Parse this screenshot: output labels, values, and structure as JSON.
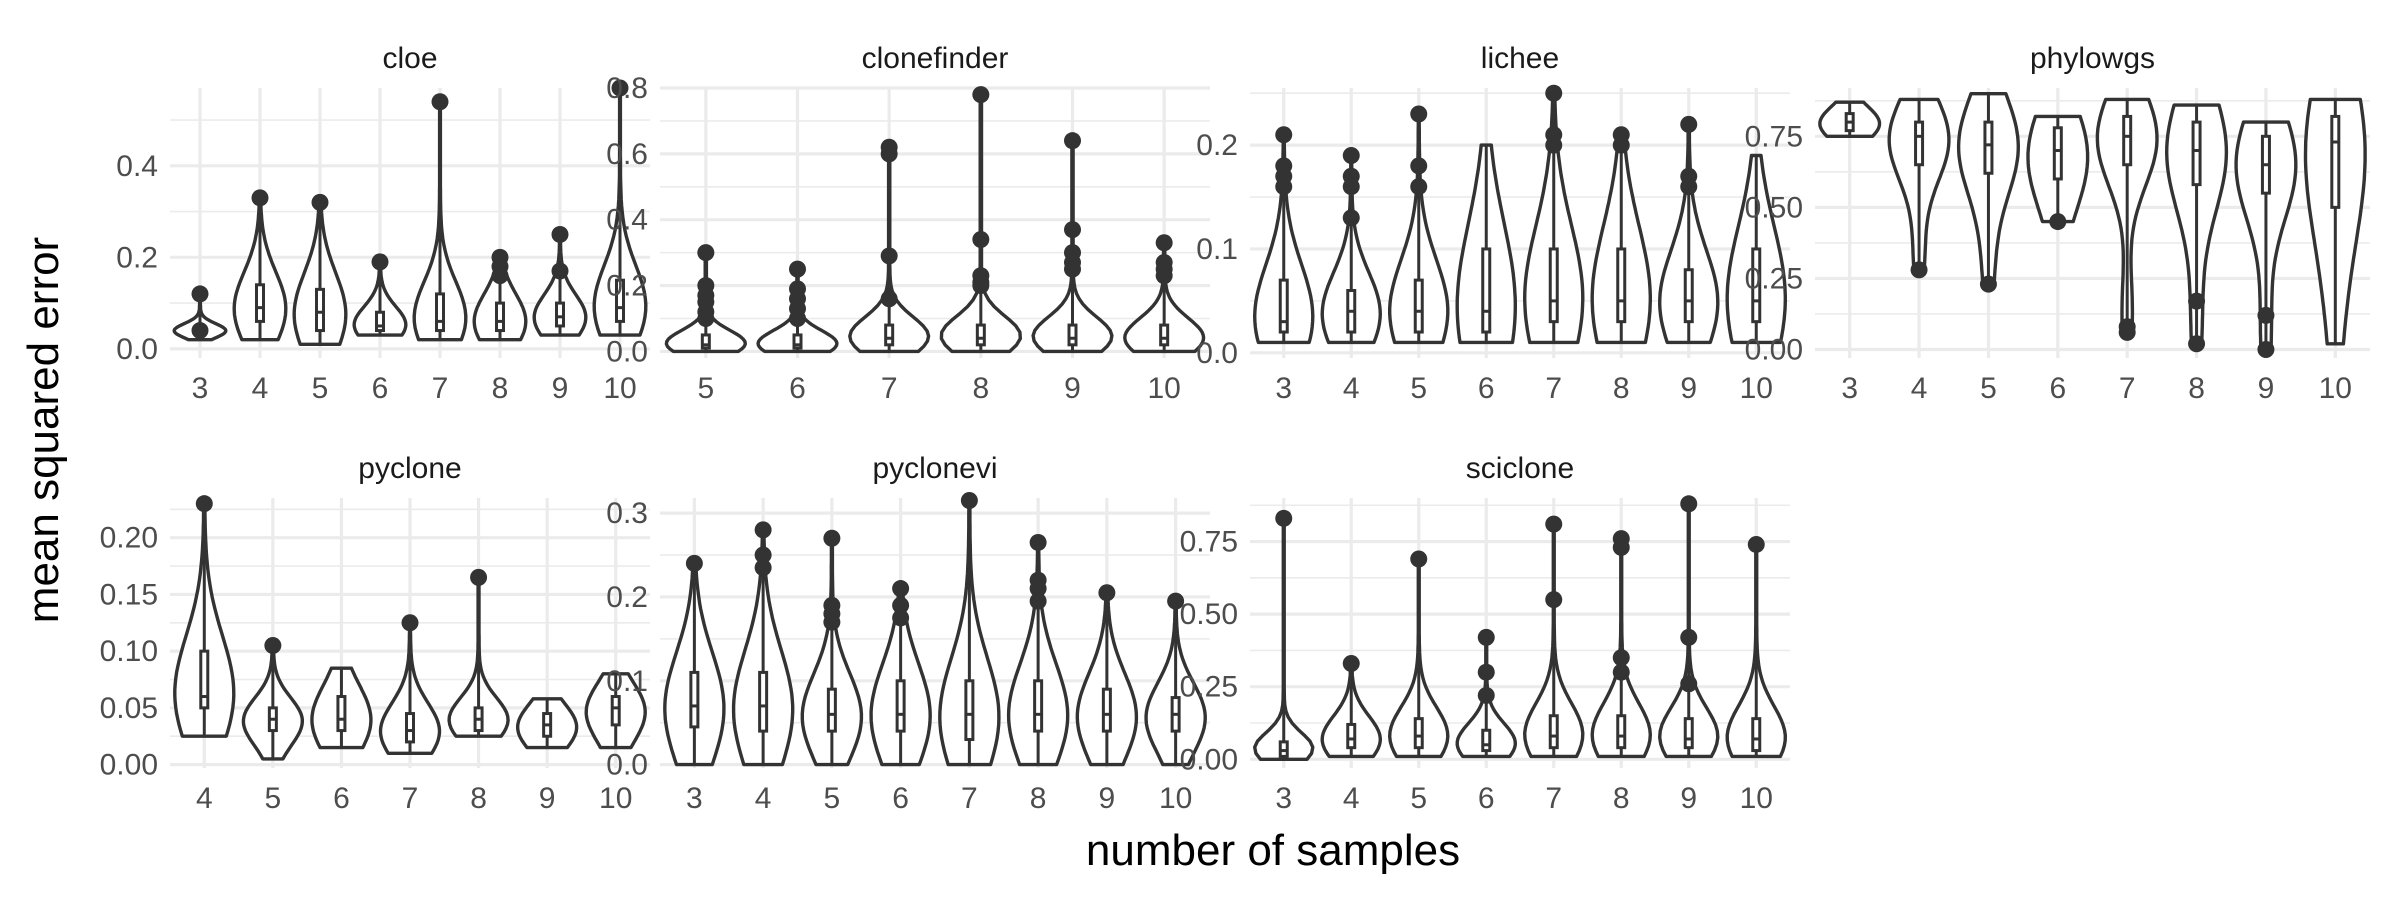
{
  "xlabel": "number of samples",
  "ylabel": "mean squared error",
  "colors": {
    "ink": "#333333",
    "grid": "#ebebeb",
    "background": "#ffffff"
  },
  "chart_data": [
    {
      "type": "violin",
      "title": "cloe",
      "categories": [
        "3",
        "4",
        "5",
        "6",
        "7",
        "8",
        "9",
        "10"
      ],
      "ylim": [
        -0.02,
        0.57
      ],
      "yticks": [
        0.0,
        0.2,
        0.4
      ],
      "ytick_labels": [
        "0.0",
        "0.2",
        "0.4"
      ],
      "groups": [
        {
          "x": "3",
          "min": 0.02,
          "q1": 0.035,
          "median": 0.04,
          "q3": 0.05,
          "max": 0.12,
          "outliers": [
            0.12,
            0.04
          ]
        },
        {
          "x": "4",
          "min": 0.02,
          "q1": 0.06,
          "median": 0.09,
          "q3": 0.14,
          "max": 0.33,
          "outliers": [
            0.33
          ]
        },
        {
          "x": "5",
          "min": 0.01,
          "q1": 0.04,
          "median": 0.08,
          "q3": 0.13,
          "max": 0.32,
          "outliers": [
            0.32
          ]
        },
        {
          "x": "6",
          "min": 0.03,
          "q1": 0.04,
          "median": 0.05,
          "q3": 0.08,
          "max": 0.19,
          "outliers": [
            0.19
          ]
        },
        {
          "x": "7",
          "min": 0.02,
          "q1": 0.04,
          "median": 0.06,
          "q3": 0.12,
          "max": 0.54,
          "outliers": [
            0.54
          ]
        },
        {
          "x": "8",
          "min": 0.02,
          "q1": 0.04,
          "median": 0.06,
          "q3": 0.1,
          "max": 0.2,
          "outliers": [
            0.2,
            0.18,
            0.16
          ]
        },
        {
          "x": "9",
          "min": 0.03,
          "q1": 0.05,
          "median": 0.07,
          "q3": 0.1,
          "max": 0.25,
          "outliers": [
            0.25,
            0.17
          ]
        },
        {
          "x": "10",
          "min": 0.03,
          "q1": 0.06,
          "median": 0.09,
          "q3": 0.15,
          "max": 0.57,
          "outliers": [
            0.57
          ]
        }
      ]
    },
    {
      "type": "violin",
      "title": "clonefinder",
      "categories": [
        "5",
        "6",
        "7",
        "8",
        "9",
        "10"
      ],
      "ylim": [
        -0.02,
        0.8
      ],
      "yticks": [
        0.0,
        0.2,
        0.4,
        0.6,
        0.8
      ],
      "ytick_labels": [
        "0.0",
        "0.2",
        "0.4",
        "0.6",
        "0.8"
      ],
      "groups": [
        {
          "x": "5",
          "min": 0.0,
          "q1": 0.01,
          "median": 0.02,
          "q3": 0.05,
          "max": 0.3,
          "outliers": [
            0.3,
            0.2,
            0.17,
            0.15,
            0.12,
            0.1
          ]
        },
        {
          "x": "6",
          "min": 0.0,
          "q1": 0.01,
          "median": 0.02,
          "q3": 0.05,
          "max": 0.25,
          "outliers": [
            0.25,
            0.19,
            0.16,
            0.13,
            0.1
          ]
        },
        {
          "x": "7",
          "min": 0.0,
          "q1": 0.02,
          "median": 0.04,
          "q3": 0.08,
          "max": 0.62,
          "outliers": [
            0.62,
            0.6,
            0.29,
            0.16
          ]
        },
        {
          "x": "8",
          "min": 0.0,
          "q1": 0.02,
          "median": 0.04,
          "q3": 0.08,
          "max": 0.78,
          "outliers": [
            0.78,
            0.34,
            0.23,
            0.21,
            0.2
          ]
        },
        {
          "x": "9",
          "min": 0.0,
          "q1": 0.02,
          "median": 0.04,
          "q3": 0.08,
          "max": 0.64,
          "outliers": [
            0.64,
            0.37,
            0.3,
            0.27,
            0.25
          ]
        },
        {
          "x": "10",
          "min": 0.0,
          "q1": 0.02,
          "median": 0.04,
          "q3": 0.08,
          "max": 0.33,
          "outliers": [
            0.33,
            0.27,
            0.25,
            0.23
          ]
        }
      ]
    },
    {
      "type": "violin",
      "title": "lichee",
      "categories": [
        "3",
        "4",
        "5",
        "6",
        "7",
        "8",
        "9",
        "10"
      ],
      "ylim": [
        -0.005,
        0.255
      ],
      "yticks": [
        0.0,
        0.1,
        0.2
      ],
      "ytick_labels": [
        "0.0",
        "0.1",
        "0.2"
      ],
      "groups": [
        {
          "x": "3",
          "min": 0.01,
          "q1": 0.02,
          "median": 0.03,
          "q3": 0.07,
          "max": 0.21,
          "outliers": [
            0.21,
            0.18,
            0.17,
            0.16
          ]
        },
        {
          "x": "4",
          "min": 0.01,
          "q1": 0.02,
          "median": 0.04,
          "q3": 0.06,
          "max": 0.19,
          "outliers": [
            0.19,
            0.17,
            0.16,
            0.13
          ]
        },
        {
          "x": "5",
          "min": 0.01,
          "q1": 0.02,
          "median": 0.04,
          "q3": 0.07,
          "max": 0.23,
          "outliers": [
            0.23,
            0.18,
            0.16
          ]
        },
        {
          "x": "6",
          "min": 0.01,
          "q1": 0.02,
          "median": 0.04,
          "q3": 0.1,
          "max": 0.2,
          "outliers": []
        },
        {
          "x": "7",
          "min": 0.01,
          "q1": 0.03,
          "median": 0.05,
          "q3": 0.1,
          "max": 0.25,
          "outliers": [
            0.25,
            0.21,
            0.2
          ]
        },
        {
          "x": "8",
          "min": 0.01,
          "q1": 0.03,
          "median": 0.05,
          "q3": 0.1,
          "max": 0.21,
          "outliers": [
            0.21,
            0.2
          ]
        },
        {
          "x": "9",
          "min": 0.01,
          "q1": 0.03,
          "median": 0.05,
          "q3": 0.08,
          "max": 0.22,
          "outliers": [
            0.22,
            0.17,
            0.16
          ]
        },
        {
          "x": "10",
          "min": 0.01,
          "q1": 0.03,
          "median": 0.05,
          "q3": 0.1,
          "max": 0.19,
          "outliers": []
        }
      ]
    },
    {
      "type": "violin",
      "title": "phylowgs",
      "categories": [
        "3",
        "4",
        "5",
        "6",
        "7",
        "8",
        "9",
        "10"
      ],
      "ylim": [
        -0.03,
        0.92
      ],
      "yticks": [
        0.0,
        0.25,
        0.5,
        0.75
      ],
      "ytick_labels": [
        "0.00",
        "0.25",
        "0.50",
        "0.75"
      ],
      "groups": [
        {
          "x": "3",
          "min": 0.75,
          "q1": 0.77,
          "median": 0.8,
          "q3": 0.83,
          "max": 0.87,
          "outliers": []
        },
        {
          "x": "4",
          "min": 0.28,
          "q1": 0.65,
          "median": 0.75,
          "q3": 0.8,
          "max": 0.88,
          "outliers": [
            0.28
          ]
        },
        {
          "x": "5",
          "min": 0.23,
          "q1": 0.62,
          "median": 0.72,
          "q3": 0.8,
          "max": 0.9,
          "outliers": [
            0.23
          ]
        },
        {
          "x": "6",
          "min": 0.45,
          "q1": 0.6,
          "median": 0.7,
          "q3": 0.78,
          "max": 0.82,
          "outliers": [
            0.45
          ]
        },
        {
          "x": "7",
          "min": 0.06,
          "q1": 0.65,
          "median": 0.75,
          "q3": 0.82,
          "max": 0.88,
          "outliers": [
            0.08,
            0.06
          ]
        },
        {
          "x": "8",
          "min": 0.02,
          "q1": 0.58,
          "median": 0.7,
          "q3": 0.8,
          "max": 0.86,
          "outliers": [
            0.17,
            0.02
          ]
        },
        {
          "x": "9",
          "min": 0.0,
          "q1": 0.55,
          "median": 0.65,
          "q3": 0.75,
          "max": 0.8,
          "outliers": [
            0.12,
            0.0
          ]
        },
        {
          "x": "10",
          "min": 0.02,
          "q1": 0.5,
          "median": 0.73,
          "q3": 0.82,
          "max": 0.88,
          "outliers": []
        }
      ]
    },
    {
      "type": "violin",
      "title": "pyclone",
      "categories": [
        "4",
        "5",
        "6",
        "7",
        "8",
        "9",
        "10"
      ],
      "ylim": [
        -0.003,
        0.235
      ],
      "yticks": [
        0.0,
        0.05,
        0.1,
        0.15,
        0.2
      ],
      "ytick_labels": [
        "0.00",
        "0.05",
        "0.10",
        "0.15",
        "0.20"
      ],
      "groups": [
        {
          "x": "4",
          "min": 0.025,
          "q1": 0.05,
          "median": 0.06,
          "q3": 0.1,
          "max": 0.23,
          "outliers": [
            0.23
          ]
        },
        {
          "x": "5",
          "min": 0.005,
          "q1": 0.03,
          "median": 0.04,
          "q3": 0.05,
          "max": 0.105,
          "outliers": [
            0.105
          ]
        },
        {
          "x": "6",
          "min": 0.015,
          "q1": 0.03,
          "median": 0.04,
          "q3": 0.06,
          "max": 0.085,
          "outliers": []
        },
        {
          "x": "7",
          "min": 0.01,
          "q1": 0.02,
          "median": 0.03,
          "q3": 0.045,
          "max": 0.125,
          "outliers": [
            0.125
          ]
        },
        {
          "x": "8",
          "min": 0.025,
          "q1": 0.03,
          "median": 0.04,
          "q3": 0.05,
          "max": 0.165,
          "outliers": [
            0.165
          ]
        },
        {
          "x": "9",
          "min": 0.015,
          "q1": 0.025,
          "median": 0.035,
          "q3": 0.045,
          "max": 0.058,
          "outliers": []
        },
        {
          "x": "10",
          "min": 0.015,
          "q1": 0.035,
          "median": 0.05,
          "q3": 0.06,
          "max": 0.08,
          "outliers": []
        }
      ]
    },
    {
      "type": "violin",
      "title": "pyclonevi",
      "categories": [
        "3",
        "4",
        "5",
        "6",
        "7",
        "8",
        "9",
        "10"
      ],
      "ylim": [
        -0.004,
        0.318
      ],
      "yticks": [
        0.0,
        0.1,
        0.2,
        0.3
      ],
      "ytick_labels": [
        "0.0",
        "0.1",
        "0.2",
        "0.3"
      ],
      "groups": [
        {
          "x": "3",
          "min": 0.0,
          "q1": 0.045,
          "median": 0.07,
          "q3": 0.11,
          "max": 0.24,
          "outliers": [
            0.24
          ]
        },
        {
          "x": "4",
          "min": 0.0,
          "q1": 0.04,
          "median": 0.07,
          "q3": 0.11,
          "max": 0.28,
          "outliers": [
            0.28,
            0.25,
            0.235
          ]
        },
        {
          "x": "5",
          "min": 0.0,
          "q1": 0.04,
          "median": 0.06,
          "q3": 0.09,
          "max": 0.27,
          "outliers": [
            0.27,
            0.19,
            0.18,
            0.17
          ]
        },
        {
          "x": "6",
          "min": 0.0,
          "q1": 0.04,
          "median": 0.06,
          "q3": 0.1,
          "max": 0.21,
          "outliers": [
            0.21,
            0.19,
            0.175
          ]
        },
        {
          "x": "7",
          "min": 0.0,
          "q1": 0.03,
          "median": 0.06,
          "q3": 0.1,
          "max": 0.315,
          "outliers": [
            0.315
          ]
        },
        {
          "x": "8",
          "min": 0.0,
          "q1": 0.04,
          "median": 0.06,
          "q3": 0.1,
          "max": 0.265,
          "outliers": [
            0.265,
            0.22,
            0.21,
            0.195
          ]
        },
        {
          "x": "9",
          "min": 0.0,
          "q1": 0.04,
          "median": 0.06,
          "q3": 0.09,
          "max": 0.205,
          "outliers": [
            0.205
          ]
        },
        {
          "x": "10",
          "min": 0.0,
          "q1": 0.04,
          "median": 0.06,
          "q3": 0.08,
          "max": 0.195,
          "outliers": [
            0.195
          ]
        }
      ]
    },
    {
      "type": "violin",
      "title": "sciclone",
      "categories": [
        "3",
        "4",
        "5",
        "6",
        "7",
        "8",
        "9",
        "10"
      ],
      "ylim": [
        -0.03,
        0.9
      ],
      "yticks": [
        0.0,
        0.25,
        0.5,
        0.75
      ],
      "ytick_labels": [
        "0.00",
        "0.25",
        "0.50",
        "0.75"
      ],
      "groups": [
        {
          "x": "3",
          "min": 0.0,
          "q1": 0.01,
          "median": 0.03,
          "q3": 0.06,
          "max": 0.83,
          "outliers": [
            0.83
          ]
        },
        {
          "x": "4",
          "min": 0.01,
          "q1": 0.04,
          "median": 0.07,
          "q3": 0.12,
          "max": 0.33,
          "outliers": [
            0.33
          ]
        },
        {
          "x": "5",
          "min": 0.01,
          "q1": 0.04,
          "median": 0.08,
          "q3": 0.14,
          "max": 0.69,
          "outliers": [
            0.69
          ]
        },
        {
          "x": "6",
          "min": 0.01,
          "q1": 0.03,
          "median": 0.05,
          "q3": 0.1,
          "max": 0.42,
          "outliers": [
            0.42,
            0.3,
            0.22
          ]
        },
        {
          "x": "7",
          "min": 0.01,
          "q1": 0.04,
          "median": 0.08,
          "q3": 0.15,
          "max": 0.81,
          "outliers": [
            0.81,
            0.55
          ]
        },
        {
          "x": "8",
          "min": 0.01,
          "q1": 0.04,
          "median": 0.08,
          "q3": 0.15,
          "max": 0.76,
          "outliers": [
            0.76,
            0.73,
            0.35,
            0.3
          ]
        },
        {
          "x": "9",
          "min": 0.01,
          "q1": 0.04,
          "median": 0.07,
          "q3": 0.14,
          "max": 0.88,
          "outliers": [
            0.88,
            0.42,
            0.26
          ]
        },
        {
          "x": "10",
          "min": 0.01,
          "q1": 0.03,
          "median": 0.07,
          "q3": 0.14,
          "max": 0.74,
          "outliers": [
            0.74
          ]
        }
      ]
    }
  ]
}
